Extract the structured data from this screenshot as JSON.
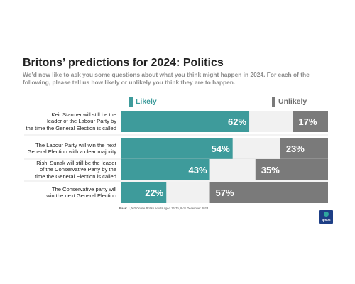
{
  "chart_data": {
    "type": "bar",
    "title": "Britons’ predictions for 2024: Politics",
    "subtitle": "We’d now like to ask you some questions about what you think might happen in 2024. For each of the following, please tell us how likely or unlikely you think they are to happen.",
    "categories": [
      [
        "Keir Starmer will still be the",
        "leader of the Labour Party by",
        "the time the General Election is called"
      ],
      [
        "The Labour Party will win the next",
        "General Election with a clear majority"
      ],
      [
        "Rishi Sunak will still be the leader",
        "of the Conservative Party by the",
        "time the General Election is called"
      ],
      [
        "The Conservative party will",
        "win the next General Election"
      ]
    ],
    "series": [
      {
        "name": "Likely",
        "values": [
          62,
          54,
          43,
          22
        ],
        "labels": [
          "62%",
          "54%",
          "43%",
          "22%"
        ],
        "color": "#3e9b9b"
      },
      {
        "name": "Unlikely",
        "values": [
          17,
          23,
          35,
          57
        ],
        "labels": [
          "17%",
          "23%",
          "35%",
          "57%"
        ],
        "color": "#7a7a7a"
      }
    ],
    "xlim": [
      0,
      100
    ],
    "legend_position": "top",
    "grid": false
  },
  "footnote": {
    "base_label": "Base:",
    "base_text": " 1,062 Online British adults aged 16-75, 8-11 December 2023"
  },
  "logo": {
    "text": "Ipsos"
  },
  "colors": {
    "likely": "#3e9b9b",
    "unlikely": "#7a7a7a",
    "remainder": "#f1f1f1",
    "divider": "#d0d0d0"
  }
}
